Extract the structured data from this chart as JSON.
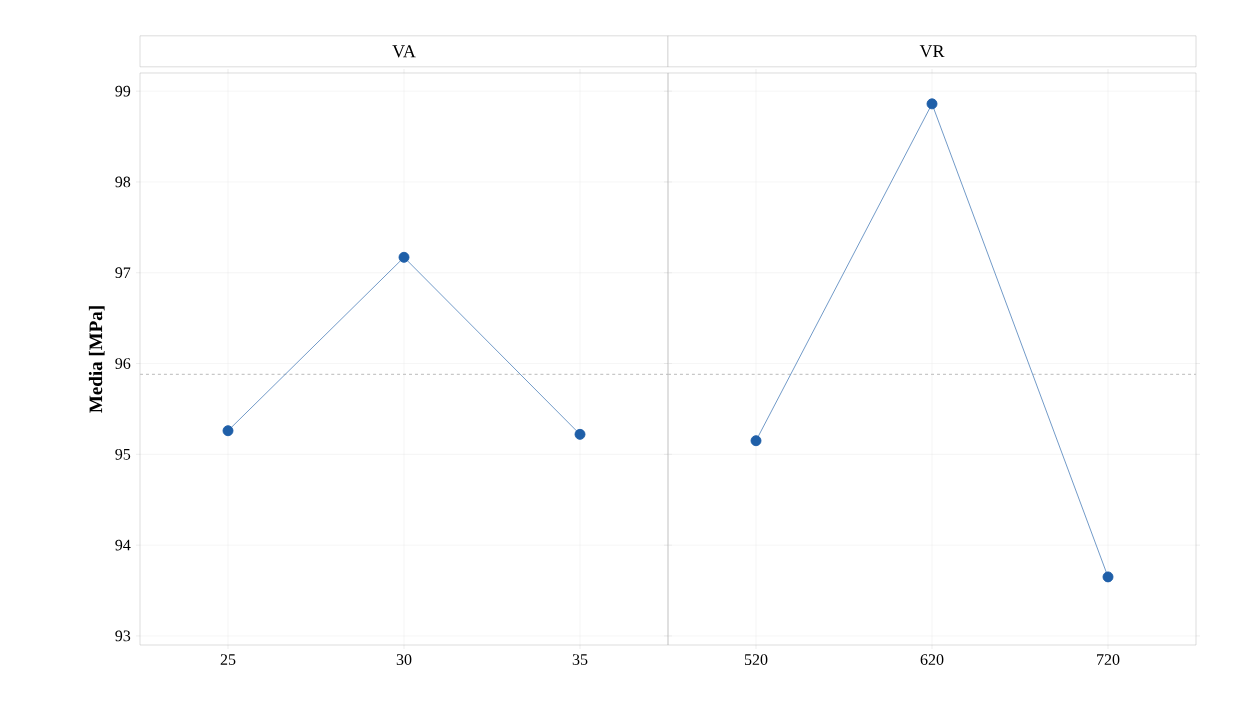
{
  "chart_data": [
    {
      "type": "line",
      "title": "VA",
      "ylabel": "Media [MPa]",
      "categories": [
        "25",
        "30",
        "35"
      ],
      "series": [
        {
          "color": "#1f5fa8",
          "values": [
            95.26,
            97.17,
            95.22
          ]
        }
      ],
      "ylim": [
        92.9,
        99.2
      ],
      "yticks": [
        93,
        94,
        95,
        96,
        97,
        98,
        99
      ],
      "grid": true,
      "marker": "circle",
      "line_style": "solid",
      "ref_lines": [
        {
          "axis": "y",
          "value": 95.88,
          "color": "#c8c8c8",
          "line_style": "dashed"
        }
      ]
    },
    {
      "type": "line",
      "title": "VR",
      "categories": [
        "520",
        "620",
        "720"
      ],
      "series": [
        {
          "color": "#1f5fa8",
          "values": [
            95.15,
            98.86,
            93.65
          ]
        }
      ],
      "ylim": [
        92.9,
        99.2
      ],
      "yticks": [
        93,
        94,
        95,
        96,
        97,
        98,
        99
      ],
      "grid": true,
      "marker": "circle",
      "line_style": "solid",
      "tick_labels": "x",
      "ref_lines": [
        {
          "axis": "y",
          "value": 95.88,
          "color": "#c8c8c8",
          "line_style": "dashed"
        }
      ]
    }
  ]
}
